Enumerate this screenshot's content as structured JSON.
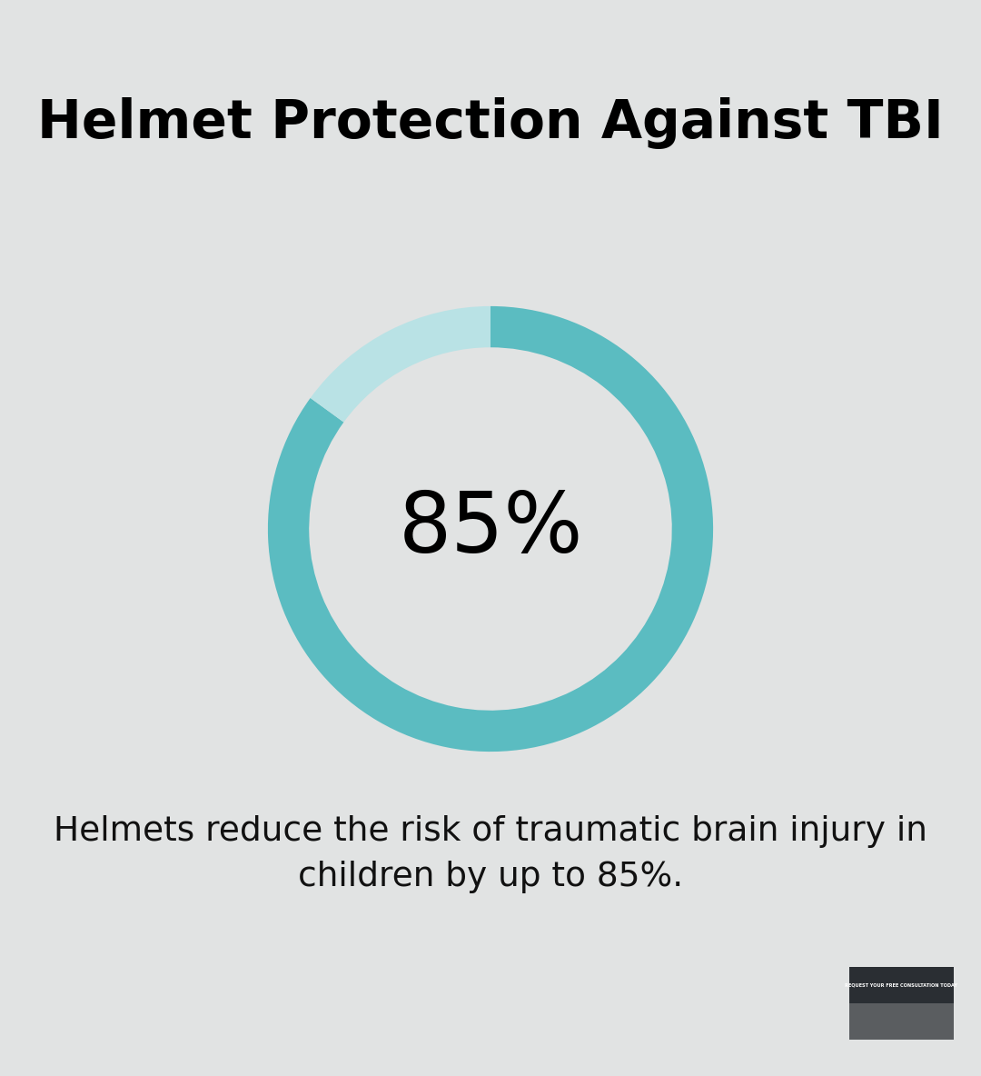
{
  "chart_data": {
    "type": "pie",
    "title": "Helmet Protection Against TBI",
    "values": [
      85,
      15
    ],
    "value_labels": [
      "85%",
      null
    ],
    "data_labels": true,
    "colors": [
      "#5bbcc1",
      "#b9e2e5"
    ],
    "annotations": [
      "Helmets reduce the risk of traumatic brain injury in children by up to 85%.",
      "REQUEST YOUR FREE CONSULTATION TODAY"
    ]
  }
}
